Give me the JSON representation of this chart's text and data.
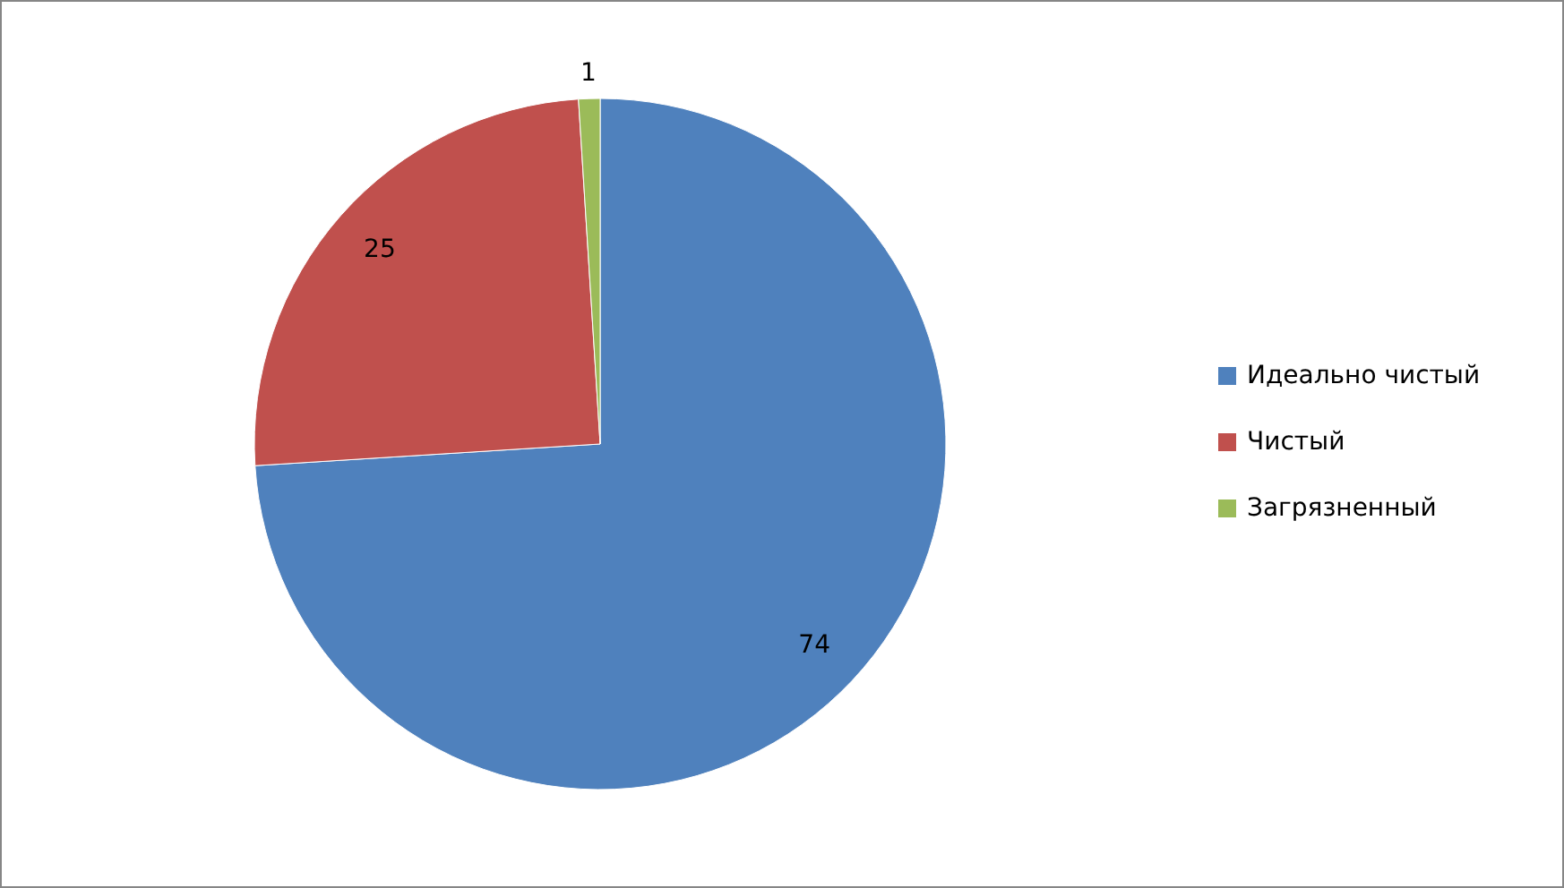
{
  "chart_data": {
    "type": "pie",
    "categories": [
      "Идеально чистый",
      "Чистый",
      "Загрязненный"
    ],
    "values": [
      74,
      25,
      1
    ],
    "colors": [
      "#4f81bd",
      "#c0504d",
      "#9bbb59"
    ],
    "data_labels": true,
    "legend": "right"
  }
}
